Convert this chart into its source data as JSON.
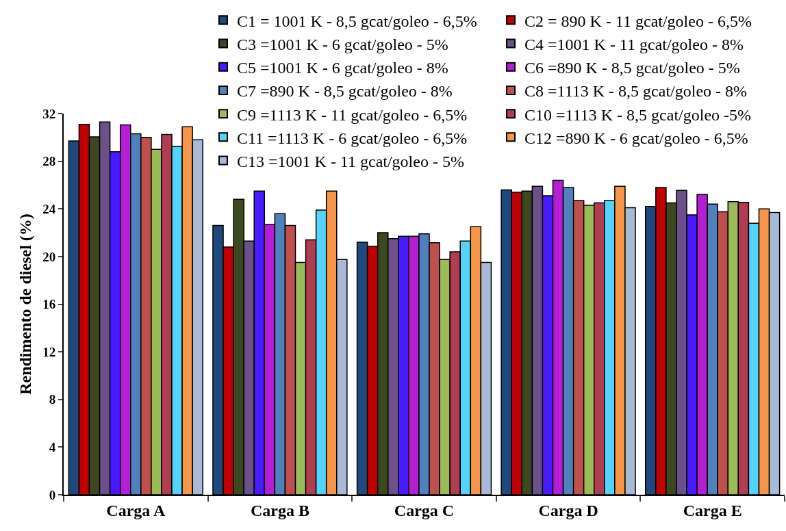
{
  "chart_data": {
    "type": "bar",
    "ylabel": "Rendimento de diesel (%)",
    "categories": [
      "Carga A",
      "Carga B",
      "Carga C",
      "Carga D",
      "Carga E"
    ],
    "series": [
      {
        "name": "C1 = 1001 K - 8,5 gcat/goleo - 6,5%",
        "color": "#1f497d",
        "values": [
          29.7,
          22.6,
          21.2,
          25.6,
          24.2
        ]
      },
      {
        "name": "C2 = 890 K - 11 gcat/goleo - 6,5%",
        "color": "#c00000",
        "values": [
          31.1,
          20.8,
          20.85,
          25.4,
          25.8
        ]
      },
      {
        "name": "C3 =1001 K - 6 gcat/goleo - 5%",
        "color": "#3b4a1e",
        "values": [
          30.05,
          24.8,
          22.0,
          25.5,
          24.5
        ]
      },
      {
        "name": "C4 =1001 K - 11 gcat/goleo - 8%",
        "color": "#6b5089",
        "values": [
          31.3,
          21.3,
          21.5,
          25.9,
          25.55
        ]
      },
      {
        "name": "C5 =1001 K - 6 gcat/goleo - 8%",
        "color": "#4a1aff",
        "values": [
          28.8,
          25.5,
          21.7,
          25.1,
          23.5
        ]
      },
      {
        "name": "C6 =890 K - 8,5 gcat/goleo - 5%",
        "color": "#b41fd4",
        "values": [
          31.05,
          22.7,
          21.7,
          26.4,
          25.2
        ]
      },
      {
        "name": "C7 =890 K - 8,5 gcat/goleo - 8%",
        "color": "#4f81bd",
        "values": [
          30.3,
          23.6,
          21.9,
          25.8,
          24.4
        ]
      },
      {
        "name": "C8 =1113 K - 8,5 gcat/goleo - 8%",
        "color": "#c0504d",
        "values": [
          30.0,
          22.6,
          21.15,
          24.7,
          23.75
        ]
      },
      {
        "name": "C9 =1113 K - 11 gcat/goleo - 6,5%",
        "color": "#9bbb59",
        "values": [
          29.0,
          19.5,
          19.75,
          24.3,
          24.6
        ]
      },
      {
        "name": "C10 =1113 K - 8,5 gcat/goleo -5%",
        "color": "#b03e50",
        "values": [
          30.25,
          21.4,
          20.4,
          24.5,
          24.55
        ]
      },
      {
        "name": "C11 =1113 K - 6 gcat/goleo - 6,5%",
        "color": "#55d3ff",
        "values": [
          29.25,
          23.9,
          21.3,
          24.7,
          22.8
        ]
      },
      {
        "name": "C12 =890 K - 6 gcat/goleo - 6,5%",
        "color": "#f79646",
        "values": [
          30.9,
          25.5,
          22.5,
          25.9,
          24.0
        ]
      },
      {
        "name": "C13 =1001 K - 11 gcat/goleo - 5%",
        "color": "#a9b9d9",
        "values": [
          29.8,
          19.75,
          19.5,
          24.1,
          23.7
        ]
      }
    ],
    "ylim": [
      0,
      32
    ],
    "yticks": [
      0,
      4,
      8,
      12,
      16,
      20,
      24,
      28,
      32
    ],
    "legend": "top right"
  }
}
